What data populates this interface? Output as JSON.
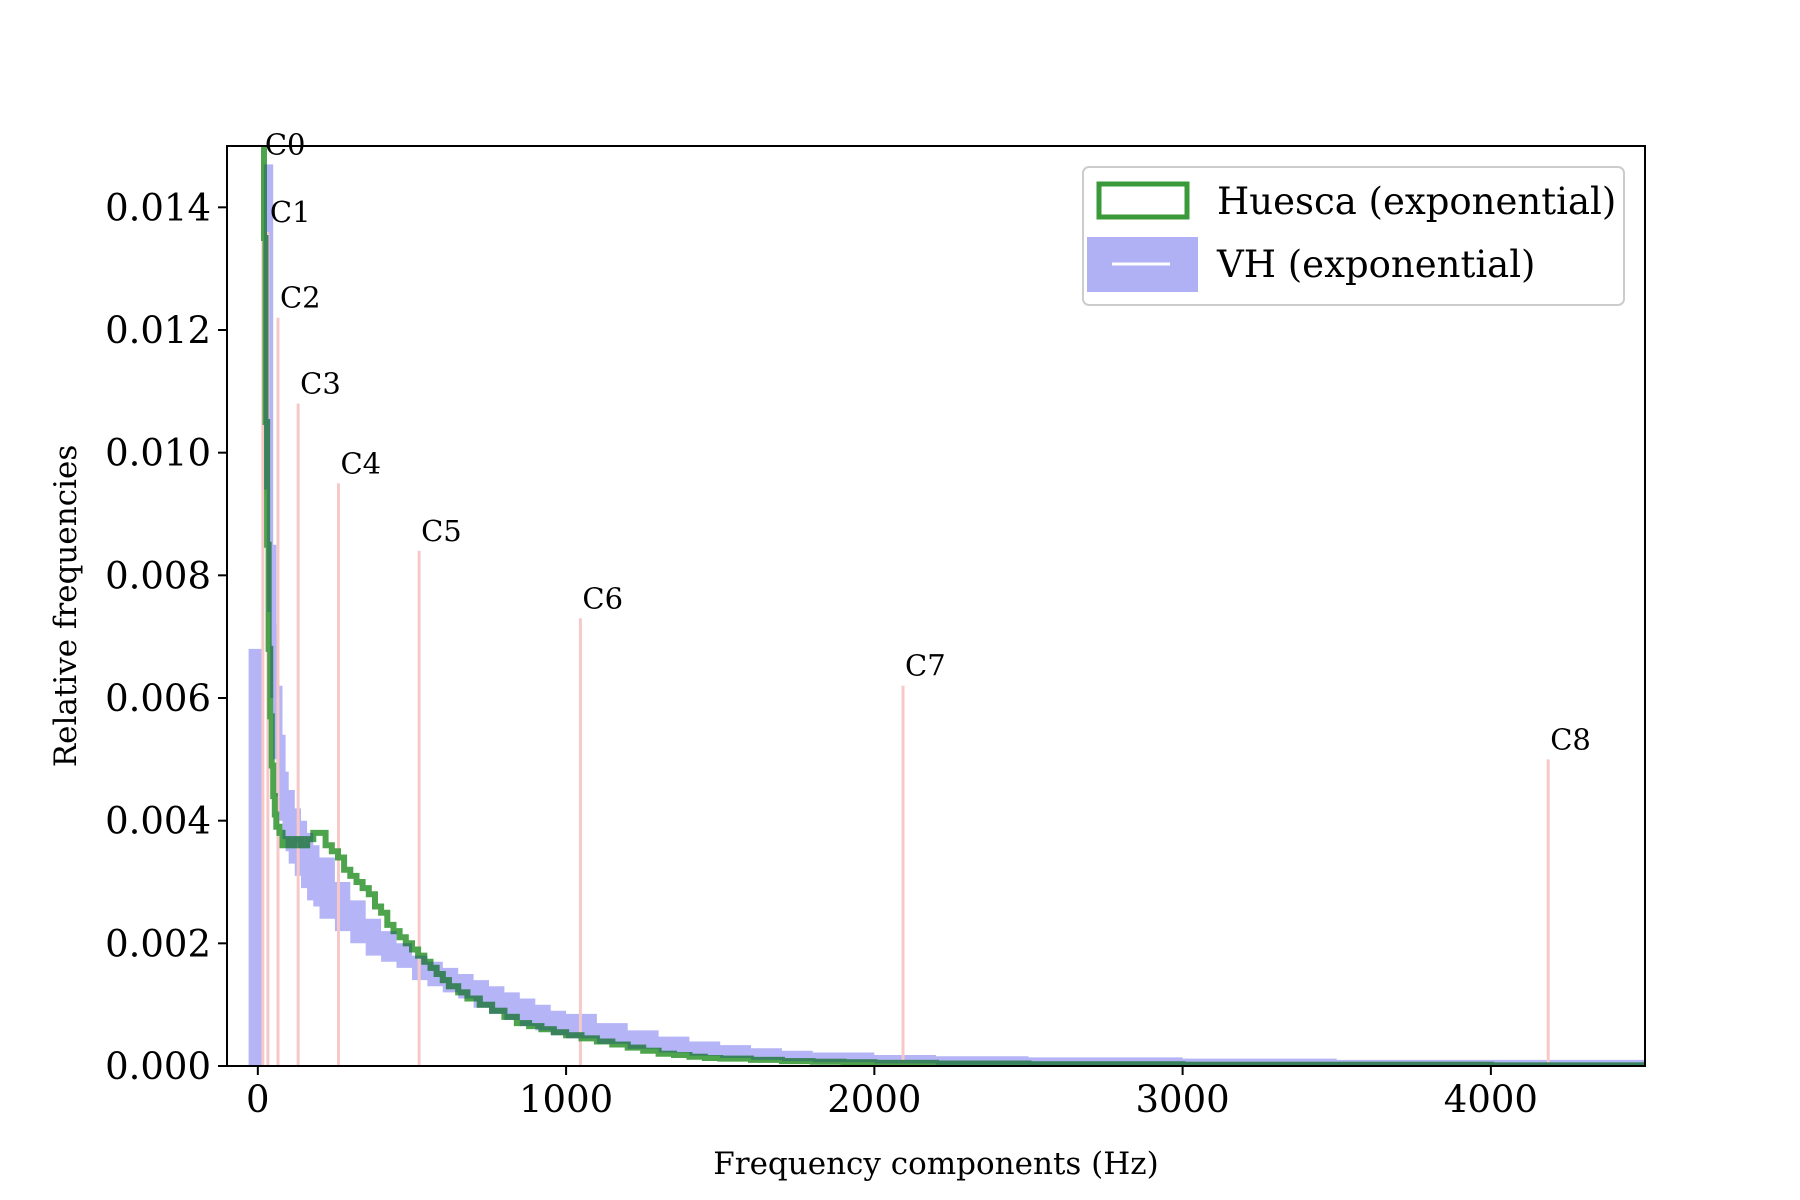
{
  "chart_data": {
    "type": "line",
    "title": "",
    "xlabel": "Frequency components (Hz)",
    "ylabel": "Relative frequencies",
    "xlim": [
      -100,
      4500
    ],
    "ylim": [
      0,
      0.015
    ],
    "xticks": [
      0,
      1000,
      2000,
      3000,
      4000
    ],
    "xtick_labels": [
      "0",
      "1000",
      "2000",
      "3000",
      "4000"
    ],
    "yticks": [
      0,
      0.002,
      0.004,
      0.006,
      0.008,
      0.01,
      0.012,
      0.014
    ],
    "ytick_labels": [
      "0.000",
      "0.002",
      "0.004",
      "0.006",
      "0.008",
      "0.010",
      "0.012",
      "0.014"
    ],
    "grid": false,
    "legend_position": "top-right",
    "series": [
      {
        "name": "Huesca (exponential)",
        "style": "step",
        "color": "#3a9a3a",
        "x": [
          18,
          20,
          25,
          30,
          35,
          40,
          45,
          50,
          55,
          60,
          70,
          80,
          90,
          100,
          120,
          140,
          160,
          180,
          200,
          220,
          240,
          260,
          280,
          300,
          320,
          340,
          360,
          380,
          400,
          420,
          440,
          460,
          480,
          500,
          520,
          540,
          560,
          580,
          600,
          620,
          650,
          680,
          720,
          760,
          800,
          840,
          880,
          920,
          960,
          1000,
          1050,
          1100,
          1150,
          1200,
          1250,
          1300,
          1350,
          1400,
          1450,
          1500,
          1600,
          1700,
          1800,
          1900,
          2000,
          2200,
          2500,
          3000,
          3500,
          4000,
          4500
        ],
        "y": [
          0.015,
          0.0135,
          0.0105,
          0.0085,
          0.0068,
          0.0057,
          0.0049,
          0.0044,
          0.0041,
          0.0039,
          0.0038,
          0.0036,
          0.0037,
          0.0036,
          0.0037,
          0.0036,
          0.0037,
          0.0038,
          0.0038,
          0.0036,
          0.0035,
          0.0034,
          0.0032,
          0.0031,
          0.003,
          0.0029,
          0.0028,
          0.0026,
          0.0025,
          0.0023,
          0.0022,
          0.0021,
          0.002,
          0.0019,
          0.0018,
          0.0017,
          0.0016,
          0.0015,
          0.0014,
          0.0013,
          0.0012,
          0.0011,
          0.001,
          0.0009,
          0.0008,
          0.0007,
          0.00065,
          0.0006,
          0.00055,
          0.0005,
          0.00045,
          0.0004,
          0.00035,
          0.0003,
          0.00025,
          0.0002,
          0.00018,
          0.00015,
          0.00013,
          0.00012,
          0.0001,
          8e-05,
          7e-05,
          6e-05,
          5e-05,
          4e-05,
          3e-05,
          2e-05,
          2e-05,
          1e-05,
          1e-05
        ]
      },
      {
        "name": "VH (exponential)",
        "style": "band",
        "color": "#b0b0f5",
        "x": [
          -30,
          20,
          30,
          40,
          50,
          60,
          70,
          80,
          90,
          100,
          120,
          140,
          160,
          180,
          200,
          250,
          300,
          350,
          400,
          450,
          500,
          550,
          600,
          650,
          700,
          750,
          800,
          850,
          900,
          950,
          1000,
          1100,
          1200,
          1300,
          1400,
          1500,
          1600,
          1700,
          1800,
          2000,
          2200,
          2500,
          3000,
          3500,
          4000,
          4500
        ],
        "y_lower": [
          0.0,
          0.0094,
          0.0074,
          0.006,
          0.005,
          0.0044,
          0.004,
          0.0037,
          0.0035,
          0.0033,
          0.0031,
          0.0029,
          0.0027,
          0.0026,
          0.0024,
          0.0022,
          0.002,
          0.0018,
          0.0017,
          0.0016,
          0.0014,
          0.0013,
          0.0012,
          0.0011,
          0.00095,
          0.00085,
          0.00075,
          0.00065,
          0.00058,
          0.0005,
          0.00045,
          0.00036,
          0.00028,
          0.00022,
          0.00017,
          0.00013,
          0.0001,
          8e-05,
          6e-05,
          4e-05,
          2e-05,
          1e-05,
          0.0,
          0.0,
          0.0,
          0.0
        ],
        "y_upper": [
          0.0068,
          0.0147,
          0.0147,
          0.0147,
          0.0085,
          0.0072,
          0.0062,
          0.0054,
          0.0048,
          0.0045,
          0.0042,
          0.004,
          0.0038,
          0.0036,
          0.0034,
          0.003,
          0.0027,
          0.0024,
          0.0022,
          0.002,
          0.0018,
          0.0017,
          0.0016,
          0.0015,
          0.0014,
          0.0013,
          0.0012,
          0.0011,
          0.001,
          0.0009,
          0.00085,
          0.0007,
          0.00058,
          0.00048,
          0.0004,
          0.00034,
          0.00029,
          0.00025,
          0.00022,
          0.00018,
          0.00016,
          0.00014,
          0.00012,
          0.0001,
          0.0001,
          0.0001
        ]
      }
    ],
    "note_lines": {
      "color": "#f7c8c8",
      "items": [
        {
          "label": "C0",
          "x": 16.35,
          "y": 0.0147
        },
        {
          "label": "C1",
          "x": 32.7,
          "y": 0.0136
        },
        {
          "label": "C2",
          "x": 65.41,
          "y": 0.0122
        },
        {
          "label": "C3",
          "x": 130.81,
          "y": 0.0108
        },
        {
          "label": "C4",
          "x": 261.63,
          "y": 0.0095
        },
        {
          "label": "C5",
          "x": 523.25,
          "y": 0.0084
        },
        {
          "label": "C6",
          "x": 1046.5,
          "y": 0.0073
        },
        {
          "label": "C7",
          "x": 2093.0,
          "y": 0.0062
        },
        {
          "label": "C8",
          "x": 4186.01,
          "y": 0.005
        }
      ]
    }
  }
}
